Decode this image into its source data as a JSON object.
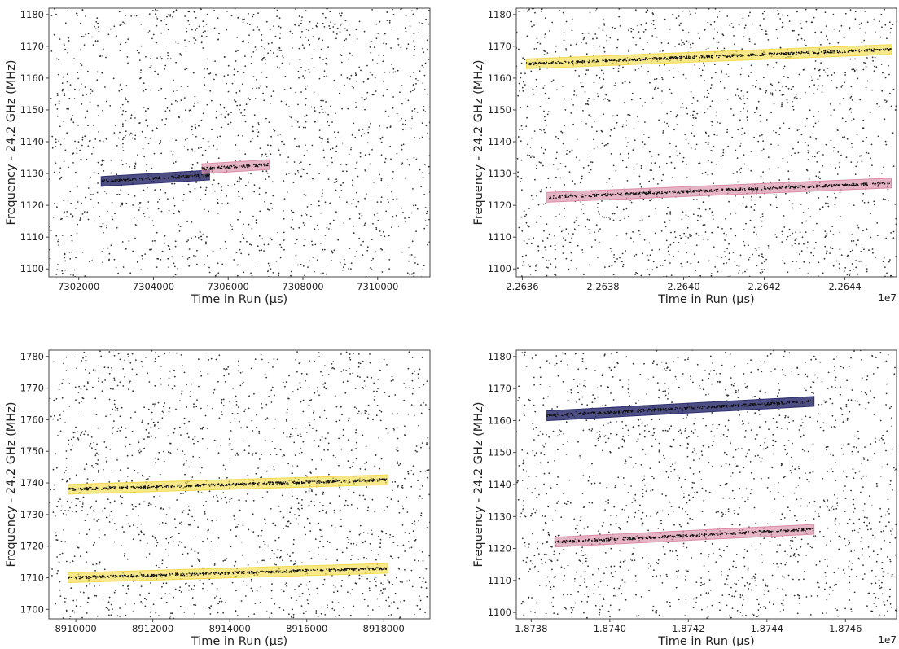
{
  "colors": {
    "blue": "#2e2f6e",
    "pink": "#d98ea6",
    "yellow": "#f2dc4a",
    "dots": "#333333",
    "frame": "#444444"
  },
  "chart_data": [
    {
      "type": "scatter",
      "xlabel": "Time in Run (μs)",
      "ylabel": "Frequency - 24.2 GHz (MHz)",
      "xlim": [
        7301200,
        7311400
      ],
      "ylim": [
        1097.5,
        1182
      ],
      "xticks": [
        7302000,
        7304000,
        7306000,
        7308000,
        7310000
      ],
      "xtick_labels": [
        "7302000",
        "7304000",
        "7306000",
        "7308000",
        "7310000"
      ],
      "yticks": [
        1100,
        1110,
        1120,
        1130,
        1140,
        1150,
        1160,
        1170,
        1180
      ],
      "offset_label": "",
      "noise_seed": 11,
      "noise_count": 1600,
      "tracks": [
        {
          "color": "blue",
          "x": [
            7302600,
            7305500
          ],
          "y": [
            1127.5,
            1129.5
          ]
        },
        {
          "color": "pink",
          "x": [
            7305300,
            7307100
          ],
          "y": [
            1131.5,
            1132.8
          ]
        }
      ]
    },
    {
      "type": "scatter",
      "xlabel": "Time in Run (μs)",
      "ylabel": "Frequency - 24.2 GHz (MHz)",
      "xlim": [
        22635850,
        22645280
      ],
      "ylim": [
        1097.5,
        1182
      ],
      "xticks": [
        22636000,
        22638000,
        22640000,
        22642000,
        22644000
      ],
      "xtick_labels": [
        "2.2636",
        "2.2638",
        "2.2640",
        "2.2642",
        "2.2644"
      ],
      "yticks": [
        1100,
        1110,
        1120,
        1130,
        1140,
        1150,
        1160,
        1170,
        1180
      ],
      "offset_label": "1e7",
      "noise_seed": 23,
      "noise_count": 1600,
      "tracks": [
        {
          "color": "yellow",
          "x": [
            22636100,
            22645150
          ],
          "y": [
            1164.5,
            1169
          ]
        },
        {
          "color": "pink",
          "x": [
            22636600,
            22645150
          ],
          "y": [
            1122.5,
            1127
          ]
        }
      ]
    },
    {
      "type": "scatter",
      "xlabel": "Time in Run (μs)",
      "ylabel": "Frequency - 24.2 GHz (MHz)",
      "xlim": [
        8909300,
        8919200
      ],
      "ylim": [
        1697,
        1782
      ],
      "xticks": [
        8910000,
        8912000,
        8914000,
        8916000,
        8918000
      ],
      "xtick_labels": [
        "8910000",
        "8912000",
        "8914000",
        "8916000",
        "8918000"
      ],
      "yticks": [
        1700,
        1710,
        1720,
        1730,
        1740,
        1750,
        1760,
        1770,
        1780
      ],
      "offset_label": "",
      "noise_seed": 37,
      "noise_count": 1600,
      "tracks": [
        {
          "color": "yellow",
          "x": [
            8909800,
            8918100
          ],
          "y": [
            1738,
            1741
          ]
        },
        {
          "color": "yellow",
          "x": [
            8909800,
            8918100
          ],
          "y": [
            1710,
            1713
          ]
        }
      ]
    },
    {
      "type": "scatter",
      "xlabel": "Time in Run (μs)",
      "ylabel": "Frequency - 24.2 GHz (MHz)",
      "xlim": [
        18737620,
        18747300
      ],
      "ylim": [
        1098,
        1182
      ],
      "xticks": [
        18738000,
        18740000,
        18742000,
        18744000,
        18746000
      ],
      "xtick_labels": [
        "1.8738",
        "1.8740",
        "1.8742",
        "1.8744",
        "1.8746"
      ],
      "yticks": [
        1100,
        1110,
        1120,
        1130,
        1140,
        1150,
        1160,
        1170,
        1180
      ],
      "offset_label": "1e7",
      "noise_seed": 53,
      "noise_count": 1600,
      "tracks": [
        {
          "color": "blue",
          "x": [
            18738400,
            18745200
          ],
          "y": [
            1161.5,
            1166
          ]
        },
        {
          "color": "pink",
          "x": [
            18738600,
            18745200
          ],
          "y": [
            1122,
            1126
          ]
        }
      ]
    }
  ]
}
